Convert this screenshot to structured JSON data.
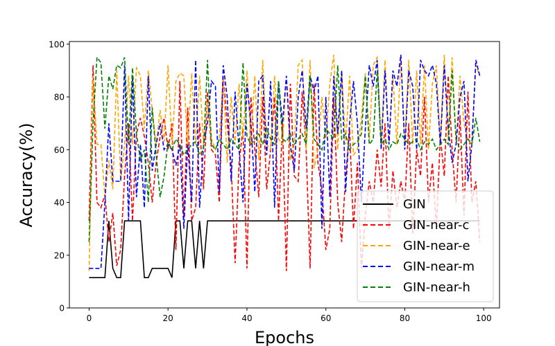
{
  "chart_data": {
    "type": "line",
    "title": "",
    "xlabel": "Epochs",
    "ylabel": "Accuracy(%)",
    "xlim": [
      -5,
      104
    ],
    "ylim": [
      0,
      101
    ],
    "xticks": [
      0,
      20,
      40,
      60,
      80,
      100
    ],
    "yticks": [
      0,
      20,
      40,
      60,
      80,
      100
    ],
    "legend_position": "lower-right",
    "series": [
      {
        "name": "GIN",
        "color": "#000000",
        "style": "solid",
        "x": [
          0,
          1,
          2,
          3,
          4,
          5,
          6,
          7,
          8,
          9,
          10,
          11,
          12,
          13,
          14,
          15,
          16,
          17,
          18,
          19,
          20,
          21,
          22,
          23,
          24,
          25,
          26,
          27,
          28,
          29,
          30,
          35,
          40,
          50,
          60,
          70,
          80,
          90,
          99
        ],
        "y": [
          11.5,
          11.5,
          11.5,
          11.5,
          11.5,
          33,
          15,
          11.5,
          11.5,
          33,
          33,
          33,
          33,
          33,
          11.5,
          11.5,
          15,
          15,
          15,
          15,
          15,
          11.5,
          33,
          33,
          15,
          33,
          33,
          15,
          33,
          15,
          33,
          33,
          33,
          33,
          33,
          33,
          33,
          33,
          33
        ]
      },
      {
        "name": "GIN-near-c",
        "color": "#ff0000",
        "style": "dashed",
        "x": [
          0,
          1,
          2,
          3,
          4,
          5,
          6,
          7,
          8,
          9,
          10,
          11,
          12,
          13,
          14,
          15,
          16,
          17,
          18,
          19,
          20,
          21,
          22,
          23,
          24,
          25,
          26,
          27,
          28,
          29,
          30,
          31,
          32,
          33,
          34,
          35,
          36,
          37,
          38,
          39,
          40,
          41,
          42,
          43,
          44,
          45,
          46,
          47,
          48,
          49,
          50,
          51,
          52,
          53,
          54,
          55,
          56,
          57,
          58,
          59,
          60,
          61,
          62,
          63,
          64,
          65,
          66,
          67,
          68,
          69,
          70,
          71,
          72,
          73,
          74,
          75,
          76,
          77,
          78,
          79,
          80,
          81,
          82,
          83,
          84,
          85,
          86,
          87,
          88,
          89,
          90,
          91,
          92,
          93,
          94,
          95,
          96,
          97,
          98,
          99
        ],
        "y": [
          33,
          92,
          40,
          38,
          43,
          25,
          36,
          16,
          22,
          50,
          70,
          33,
          66,
          72,
          65,
          55,
          40,
          55,
          65,
          72,
          60,
          70,
          22,
          86,
          34,
          76,
          33,
          38,
          70,
          45,
          82,
          60,
          58,
          40,
          88,
          70,
          54,
          17,
          55,
          68,
          15,
          80,
          60,
          42,
          80,
          45,
          60,
          80,
          33,
          70,
          14,
          85,
          50,
          48,
          82,
          60,
          15,
          85,
          55,
          45,
          22,
          30,
          80,
          40,
          25,
          50,
          68,
          30,
          55,
          15,
          35,
          48,
          40,
          60,
          46,
          70,
          30,
          52,
          38,
          48,
          40,
          70,
          28,
          60,
          50,
          80,
          40,
          55,
          30,
          65,
          50,
          88,
          60,
          40,
          73,
          35,
          82,
          40,
          48,
          25
        ]
      },
      {
        "name": "GIN-near-e",
        "color": "#ffa500",
        "style": "dashed",
        "x": [
          0,
          1,
          2,
          3,
          4,
          5,
          6,
          7,
          8,
          9,
          10,
          11,
          12,
          13,
          14,
          15,
          16,
          17,
          18,
          19,
          20,
          21,
          22,
          23,
          24,
          25,
          26,
          27,
          28,
          29,
          30,
          31,
          32,
          33,
          34,
          35,
          36,
          37,
          38,
          39,
          40,
          41,
          42,
          43,
          44,
          45,
          46,
          47,
          48,
          49,
          50,
          51,
          52,
          53,
          54,
          55,
          56,
          57,
          58,
          59,
          60,
          61,
          62,
          63,
          64,
          65,
          66,
          67,
          68,
          69,
          70,
          71,
          72,
          73,
          74,
          75,
          76,
          77,
          78,
          79,
          80,
          81,
          82,
          83,
          84,
          85,
          86,
          87,
          88,
          89,
          90,
          91,
          92,
          93,
          94,
          95,
          96,
          97,
          98,
          99
        ],
        "y": [
          14,
          88,
          62,
          62,
          42,
          56,
          45,
          90,
          48,
          62,
          88,
          62,
          91,
          88,
          68,
          90,
          75,
          62,
          75,
          63,
          92,
          62,
          86,
          89,
          88,
          61,
          89,
          62,
          88,
          62,
          78,
          64,
          60,
          64,
          88,
          55,
          80,
          62,
          85,
          64,
          90,
          62,
          88,
          56,
          94,
          62,
          60,
          88,
          64,
          62,
          88,
          56,
          62,
          92,
          94,
          60,
          94,
          53,
          60,
          80,
          64,
          85,
          96,
          60,
          90,
          62,
          88,
          58,
          60,
          72,
          89,
          64,
          92,
          95,
          62,
          94,
          62,
          88,
          62,
          95,
          62,
          94,
          62,
          90,
          62,
          92,
          60,
          85,
          92,
          62,
          96,
          64,
          95,
          62,
          88,
          70,
          64,
          62,
          92,
          88
        ]
      },
      {
        "name": "GIN-near-m",
        "color": "#0000ff",
        "style": "dashed",
        "x": [
          0,
          1,
          2,
          3,
          4,
          5,
          6,
          7,
          8,
          9,
          10,
          11,
          12,
          13,
          14,
          15,
          16,
          17,
          18,
          19,
          20,
          21,
          22,
          23,
          24,
          25,
          26,
          27,
          28,
          29,
          30,
          31,
          32,
          33,
          34,
          35,
          36,
          37,
          38,
          39,
          40,
          41,
          42,
          43,
          44,
          45,
          46,
          47,
          48,
          49,
          50,
          51,
          52,
          53,
          54,
          55,
          56,
          57,
          58,
          59,
          60,
          61,
          62,
          63,
          64,
          65,
          66,
          67,
          68,
          69,
          70,
          71,
          72,
          73,
          74,
          75,
          76,
          77,
          78,
          79,
          80,
          81,
          82,
          83,
          84,
          85,
          86,
          87,
          88,
          89,
          90,
          91,
          92,
          93,
          94,
          95,
          96,
          97,
          98,
          99
        ],
        "y": [
          15,
          15,
          15,
          15,
          40,
          70,
          48,
          48,
          48,
          92,
          33,
          88,
          42,
          62,
          38,
          88,
          52,
          62,
          70,
          60,
          62,
          60,
          54,
          62,
          30,
          62,
          40,
          94,
          38,
          62,
          70,
          86,
          84,
          44,
          92,
          80,
          48,
          82,
          60,
          40,
          85,
          70,
          44,
          86,
          88,
          58,
          86,
          38,
          86,
          70,
          88,
          62,
          52,
          80,
          90,
          68,
          88,
          82,
          88,
          30,
          80,
          42,
          88,
          66,
          90,
          44,
          70,
          86,
          70,
          40,
          68,
          92,
          84,
          94,
          60,
          90,
          62,
          90,
          84,
          96,
          60,
          90,
          84,
          60,
          94,
          90,
          88,
          92,
          85,
          62,
          92,
          68,
          55,
          62,
          80,
          86,
          48,
          62,
          94,
          88
        ]
      },
      {
        "name": "GIN-near-h",
        "color": "#008000",
        "style": "dashed",
        "x": [
          0,
          1,
          2,
          3,
          4,
          5,
          6,
          7,
          8,
          9,
          10,
          11,
          12,
          13,
          14,
          15,
          16,
          17,
          18,
          19,
          20,
          21,
          22,
          23,
          24,
          25,
          26,
          27,
          28,
          29,
          30,
          31,
          32,
          33,
          34,
          35,
          36,
          37,
          38,
          39,
          40,
          41,
          42,
          43,
          44,
          45,
          46,
          47,
          48,
          49,
          50,
          51,
          52,
          53,
          54,
          55,
          56,
          57,
          58,
          59,
          60,
          61,
          62,
          63,
          64,
          65,
          66,
          67,
          68,
          69,
          70,
          71,
          72,
          73,
          74,
          75,
          76,
          77,
          78,
          79,
          80,
          81,
          82,
          83,
          84,
          85,
          86,
          87,
          88,
          89,
          90,
          91,
          92,
          93,
          94,
          95,
          96,
          97,
          98,
          99
        ],
        "y": [
          25,
          70,
          95,
          93,
          68,
          88,
          83,
          92,
          91,
          95,
          62,
          91,
          66,
          56,
          60,
          40,
          76,
          58,
          42,
          50,
          63,
          60,
          64,
          62,
          58,
          60,
          62,
          63,
          58,
          60,
          94,
          62,
          60,
          64,
          62,
          60,
          64,
          62,
          60,
          93,
          65,
          62,
          64,
          66,
          62,
          68,
          64,
          62,
          86,
          64,
          63,
          66,
          62,
          64,
          66,
          62,
          88,
          64,
          62,
          60,
          68,
          66,
          64,
          92,
          64,
          66,
          60,
          62,
          63,
          66,
          88,
          62,
          64,
          90,
          62,
          64,
          60,
          63,
          62,
          66,
          64,
          62,
          63,
          64,
          60,
          63,
          62,
          64,
          60,
          62,
          64,
          62,
          90,
          64,
          60,
          62,
          64,
          62,
          72,
          63
        ]
      }
    ]
  }
}
